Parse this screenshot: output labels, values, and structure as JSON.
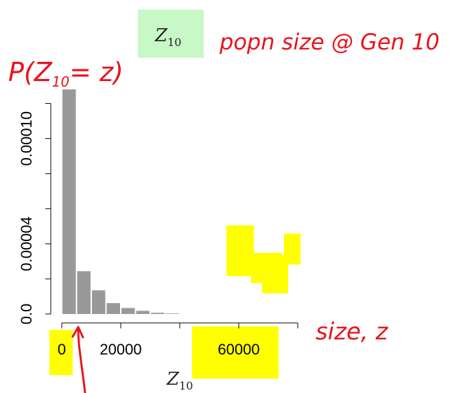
{
  "chart_data": {
    "type": "bar",
    "x": [
      2500,
      7500,
      12500,
      17500,
      22500,
      27500,
      32500,
      37500
    ],
    "values": [
      0.000128,
      2.44e-05,
      1.35e-05,
      6.2e-06,
      3.4e-06,
      1.8e-06,
      7e-07,
      3e-07
    ],
    "bin_width": 5000,
    "xlim": [
      0,
      80000
    ],
    "ylim": [
      0,
      0.00013
    ],
    "x_ticks": [
      0,
      20000,
      40000,
      60000,
      80000
    ],
    "x_tick_labels": [
      "0",
      "20000",
      "",
      "60000",
      ""
    ],
    "y_ticks": [
      0,
      2e-05,
      4e-05,
      6e-05,
      8e-05,
      0.0001,
      0.00012
    ],
    "y_tick_labels": [
      "0.0",
      "",
      "0.00004",
      "",
      "",
      "0.00010",
      ""
    ],
    "bar_color": "#999999",
    "xlabel": "Z",
    "xlabel_sub": "10",
    "grid": false
  },
  "top_label": {
    "text": "Z",
    "sub": "10"
  },
  "annotations": {
    "pop_size": "popn size @ Gen 10",
    "y_prob": "P(Z",
    "y_prob_sub": "10",
    "y_prob_tail": "= z)",
    "size_z": "size, z"
  },
  "colors": {
    "highlight_yellow": "#ffff00",
    "highlight_green": "#c8f7c8",
    "ink": "#e8141c"
  }
}
